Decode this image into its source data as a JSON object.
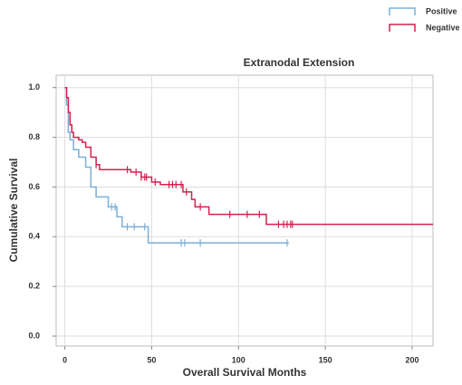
{
  "chart_data": {
    "type": "step",
    "title": "Extranodal Extension",
    "x_label": "Overall Survival Months",
    "y_label": "Cumulative Survival",
    "xlim": [
      -5,
      212
    ],
    "ylim": [
      -0.04,
      1.05
    ],
    "xticks": [
      0,
      50,
      100,
      150,
      200
    ],
    "yticks": [
      {
        "value": 0,
        "label": "0.0"
      },
      {
        "value": 0.2,
        "label": "0.2"
      },
      {
        "value": 0.4,
        "label": "0.4"
      },
      {
        "value": 0.6,
        "label": "0.6"
      },
      {
        "value": 0.8,
        "label": "0.8"
      },
      {
        "value": 1,
        "label": "1.0"
      }
    ],
    "grid": true,
    "series": [
      {
        "name": "Positive",
        "color": "#7ab0da",
        "x": [
          0,
          1,
          2,
          3,
          5,
          8,
          12,
          15,
          18,
          25,
          30,
          33,
          48,
          129
        ],
        "values": [
          1.0,
          0.93,
          0.82,
          0.79,
          0.75,
          0.72,
          0.68,
          0.6,
          0.56,
          0.52,
          0.48,
          0.44,
          0.375,
          0.375
        ],
        "censored_x": [
          27,
          29,
          36,
          40,
          46,
          67,
          69,
          78,
          128
        ],
        "censored_values": [
          0.52,
          0.52,
          0.44,
          0.44,
          0.44,
          0.375,
          0.375,
          0.375,
          0.375
        ]
      },
      {
        "name": "Negative",
        "color": "#d4204f",
        "x": [
          0,
          1,
          2,
          3,
          4,
          5,
          8,
          10,
          12,
          15,
          18,
          20,
          38,
          44,
          50,
          55,
          68,
          73,
          75,
          83,
          116,
          212
        ],
        "values": [
          1.0,
          0.96,
          0.9,
          0.85,
          0.82,
          0.8,
          0.79,
          0.78,
          0.76,
          0.72,
          0.69,
          0.67,
          0.66,
          0.64,
          0.62,
          0.61,
          0.58,
          0.55,
          0.52,
          0.49,
          0.45,
          0.45
        ],
        "censored_x": [
          18,
          36,
          41,
          44,
          46,
          47,
          52,
          60,
          62,
          64,
          67,
          70,
          78,
          95,
          105,
          112,
          123,
          126,
          128,
          130,
          131
        ],
        "censored_values": [
          0.69,
          0.67,
          0.66,
          0.64,
          0.64,
          0.64,
          0.62,
          0.61,
          0.61,
          0.61,
          0.61,
          0.58,
          0.52,
          0.49,
          0.49,
          0.49,
          0.45,
          0.45,
          0.45,
          0.45,
          0.45
        ]
      }
    ]
  }
}
